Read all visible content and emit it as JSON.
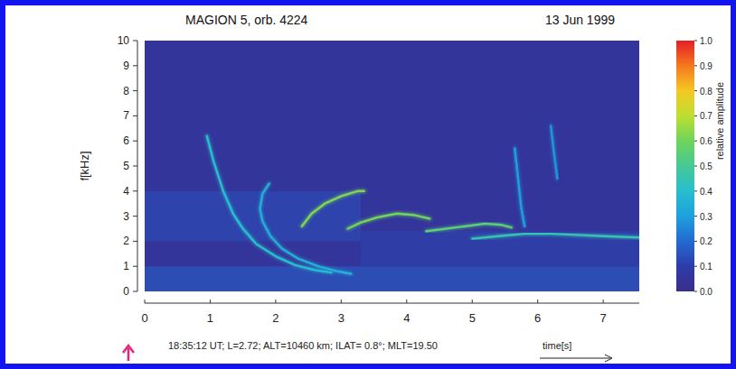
{
  "chart_data": {
    "type": "spectrogram",
    "title": "MAGION 5, orb. 4224",
    "subtitle": "13 Jun 1999",
    "xlabel": "time[s]",
    "ylabel": "f[kHz]",
    "annotations": [
      "18:35:12 UT; L=2.72; ALT=10460 km; ILAT= 0.8°; MLT=19.50"
    ],
    "xlim": [
      0,
      7.55
    ],
    "ylim": [
      0,
      10
    ],
    "xticks": [
      0,
      1,
      2,
      3,
      4,
      5,
      6,
      7
    ],
    "yticks": [
      0,
      1,
      2,
      3,
      4,
      5,
      6,
      7,
      8,
      9,
      10
    ],
    "bands": [
      {
        "xlim": [
          0,
          7.55
        ],
        "ylim": [
          0,
          1
        ],
        "amplitude": 0.18
      },
      {
        "xlim": [
          0,
          3.3
        ],
        "ylim": [
          2,
          4
        ],
        "amplitude": 0.14
      },
      {
        "xlim": [
          3.3,
          7.55
        ],
        "ylim": [
          1,
          2.4
        ],
        "amplitude": 0.12
      }
    ],
    "series": [
      {
        "x": [
          0.95,
          1.05,
          1.2,
          1.35,
          1.5,
          1.7,
          2.0,
          2.3,
          2.6,
          2.85
        ],
        "values": [
          6.2,
          5.2,
          4.0,
          3.1,
          2.5,
          1.9,
          1.4,
          1.05,
          0.85,
          0.75
        ],
        "amplitude": 0.4
      },
      {
        "x": [
          1.9,
          1.8,
          1.76,
          1.8,
          1.92,
          2.1,
          2.35,
          2.65,
          2.95,
          3.15
        ],
        "values": [
          4.3,
          3.9,
          3.3,
          2.8,
          2.2,
          1.7,
          1.3,
          1.0,
          0.8,
          0.7
        ],
        "amplitude": 0.35
      },
      {
        "x": [
          2.4,
          2.55,
          2.75,
          3.0,
          3.25,
          3.35
        ],
        "values": [
          2.6,
          3.1,
          3.5,
          3.8,
          4.0,
          4.0
        ],
        "amplitude": 0.62
      },
      {
        "x": [
          3.1,
          3.3,
          3.55,
          3.85,
          4.1,
          4.35
        ],
        "values": [
          2.5,
          2.75,
          2.95,
          3.1,
          3.05,
          2.9
        ],
        "amplitude": 0.6
      },
      {
        "x": [
          4.3,
          4.6,
          4.9,
          5.2,
          5.45,
          5.6
        ],
        "values": [
          2.4,
          2.5,
          2.6,
          2.7,
          2.65,
          2.55
        ],
        "amplitude": 0.55
      },
      {
        "x": [
          5.0,
          5.4,
          5.8,
          6.2,
          6.6,
          7.0,
          7.55
        ],
        "values": [
          2.1,
          2.2,
          2.3,
          2.3,
          2.25,
          2.2,
          2.15
        ],
        "amplitude": 0.45
      },
      {
        "x": [
          5.65,
          5.7,
          5.75,
          5.8
        ],
        "values": [
          5.7,
          4.5,
          3.3,
          2.6
        ],
        "amplitude": 0.3
      },
      {
        "x": [
          6.2,
          6.25,
          6.3
        ],
        "values": [
          6.6,
          5.5,
          4.5
        ],
        "amplitude": 0.28
      }
    ],
    "colorbar": {
      "range": [
        0,
        1
      ],
      "ticks": [
        {
          "value": 0,
          "label": "0.0"
        },
        {
          "value": 0.1,
          "label": "0.1"
        },
        {
          "value": 0.2,
          "label": "0.2"
        },
        {
          "value": 0.3,
          "label": "0.3"
        },
        {
          "value": 0.4,
          "label": "0.4"
        },
        {
          "value": 0.5,
          "label": "0.5"
        },
        {
          "value": 0.6,
          "label": "0.6"
        },
        {
          "value": 0.7,
          "label": "0.7"
        },
        {
          "value": 0.8,
          "label": "0.8"
        },
        {
          "value": 0.9,
          "label": "0.9"
        },
        {
          "value": 1,
          "label": "1.0"
        }
      ],
      "label": "relative amplitude"
    }
  }
}
